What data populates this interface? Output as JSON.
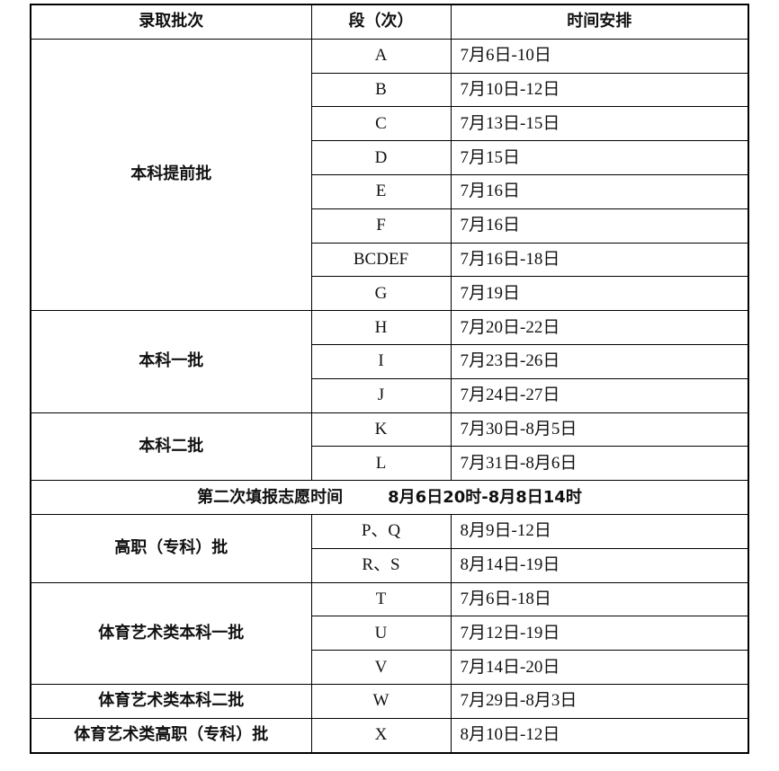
{
  "headers": [
    "录取批次",
    "段（次）",
    "时间安排"
  ],
  "groups": [
    {
      "batch": "本科提前批",
      "rows": [
        {
          "segment": "A",
          "time": "7月6日-10日"
        },
        {
          "segment": "B",
          "time": "7月10日-12日"
        },
        {
          "segment": "C",
          "time": "7月13日-15日"
        },
        {
          "segment": "D",
          "time": "7月15日"
        },
        {
          "segment": "E",
          "time": "7月16日"
        },
        {
          "segment": "F",
          "time": "7月16日"
        },
        {
          "segment": "BCDEF",
          "time": "7月16日-18日"
        },
        {
          "segment": "G",
          "time": "7月19日"
        }
      ]
    },
    {
      "batch": "本科一批",
      "rows": [
        {
          "segment": "H",
          "time": "7月20日-22日"
        },
        {
          "segment": "I",
          "time": "7月23日-26日"
        },
        {
          "segment": "J",
          "time": "7月24日-27日"
        }
      ]
    },
    {
      "batch": "本科二批",
      "rows": [
        {
          "segment": "K",
          "time": "7月30日-8月5日"
        },
        {
          "segment": "L",
          "time": "7月31日-8月6日"
        }
      ]
    },
    {
      "span": true,
      "label": "第二次填报志愿时间",
      "time": "8月6日20时-8月8日14时"
    },
    {
      "batch": "高职（专科）批",
      "rows": [
        {
          "segment": "P、Q",
          "time": "8月9日-12日"
        },
        {
          "segment": "R、S",
          "time": "8月14日-19日"
        }
      ]
    },
    {
      "batch": "体育艺术类本科一批",
      "rows": [
        {
          "segment": "T",
          "time": "7月6日-18日"
        },
        {
          "segment": "U",
          "time": "7月12日-19日"
        },
        {
          "segment": "V",
          "time": "7月14日-20日"
        }
      ]
    },
    {
      "batch": "体育艺术类本科二批",
      "rows": [
        {
          "segment": "W",
          "time": "7月29日-8月3日"
        }
      ]
    },
    {
      "batch": "体育艺术类高职（专科）批",
      "rows": [
        {
          "segment": "X",
          "time": "8月10日-12日"
        }
      ]
    }
  ]
}
